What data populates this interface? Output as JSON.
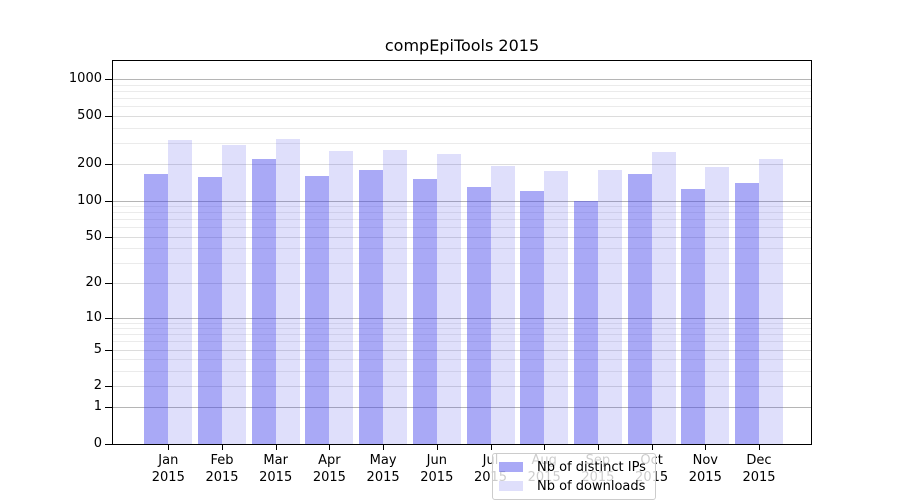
{
  "title": "compEpiTools 2015",
  "chart_data": {
    "type": "bar",
    "title": "compEpiTools 2015",
    "x_tick_months": [
      "Jan",
      "Feb",
      "Mar",
      "Apr",
      "May",
      "Jun",
      "Jul",
      "Aug",
      "Sep",
      "Oct",
      "Nov",
      "Dec"
    ],
    "x_tick_year": "2015",
    "categories": [
      "Jan 2015",
      "Feb 2015",
      "Mar 2015",
      "Apr 2015",
      "May 2015",
      "Jun 2015",
      "Jul 2015",
      "Aug 2015",
      "Sep 2015",
      "Oct 2015",
      "Nov 2015",
      "Dec 2015"
    ],
    "series": [
      {
        "name": "Nb of distinct IPs",
        "color": "#a9a9f5",
        "fill": "rgba(64,64,234,0.45)",
        "values": [
          165,
          157,
          220,
          160,
          180,
          150,
          130,
          120,
          100,
          165,
          125,
          140
        ]
      },
      {
        "name": "Nb of downloads",
        "color": "#dedefa",
        "fill": "rgba(64,64,234,0.17)",
        "values": [
          320,
          290,
          325,
          255,
          260,
          245,
          195,
          175,
          180,
          250,
          190,
          220
        ]
      }
    ],
    "y_scale": "log(1+x)",
    "y_ticks": [
      0,
      1,
      2,
      5,
      10,
      20,
      50,
      100,
      200,
      500,
      1000
    ],
    "y_minor_ticks": [
      3,
      4,
      6,
      7,
      8,
      9,
      30,
      40,
      60,
      70,
      80,
      90,
      300,
      400,
      600,
      700,
      800,
      900
    ],
    "y_decade_ticks": [
      1,
      10,
      100,
      1000
    ],
    "ylim": [
      0,
      1420
    ],
    "grid": true,
    "legend_position": "lower center inside plot",
    "background_color": "#ffffff"
  }
}
